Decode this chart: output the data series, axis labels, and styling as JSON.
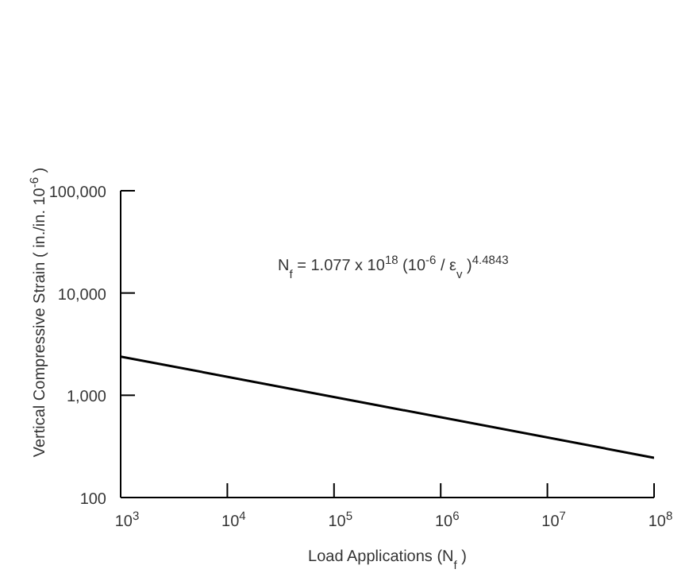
{
  "chart_data": {
    "type": "line",
    "xlabel": "Load Applications (N$_{f}$ )",
    "ylabel": "Vertical Compressive Strain ( in./in. 10$^{-6}$ )",
    "annotations": [
      "N$_{f}$  = 1.077 x 10$^{18}$ (10$^{-6}$ / ε$_{v}$ )$^{4.4843}$"
    ],
    "x": [
      1000,
      100000000
    ],
    "series": [
      {
        "color": "#000000",
        "values": [
          2390,
          245
        ]
      }
    ],
    "log": "xy",
    "marker": "none",
    "line_style": "solid",
    "xlim": [
      1000,
      100000000
    ],
    "xticks": [
      {
        "value": 1000,
        "label": "10$^{3}$"
      },
      {
        "value": 10000,
        "label": "10$^{4}$"
      },
      {
        "value": 100000,
        "label": "10$^{5}$"
      },
      {
        "value": 1000000,
        "label": "10$^{6}$"
      },
      {
        "value": 10000000,
        "label": "10$^{7}$"
      },
      {
        "value": 100000000,
        "label": "10$^{8}$"
      }
    ],
    "ylim": [
      100,
      100000
    ],
    "yticks": [
      {
        "value": 100,
        "label": "100"
      },
      {
        "value": 1000,
        "label": "1,000"
      },
      {
        "value": 10000,
        "label": "10,000"
      },
      {
        "value": 100000,
        "label": "100,000"
      }
    ]
  }
}
